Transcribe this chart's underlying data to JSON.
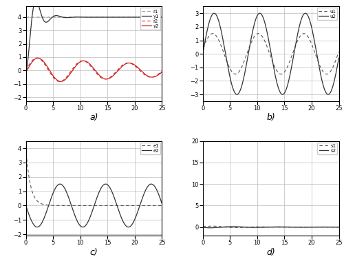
{
  "t_end": 25,
  "dt": 0.005,
  "subplot_labels": [
    "a)",
    "b)",
    "c)",
    "d)"
  ],
  "legend_a": [
    "r1",
    "y1",
    "r2",
    "y2"
  ],
  "legend_b": [
    "u1",
    "u2"
  ],
  "legend_c": [
    "e1",
    "e2"
  ],
  "legend_d": [
    "s1",
    "s2"
  ],
  "color_gray_dashed": "#999999",
  "color_dark": "#333333",
  "color_red": "#cc2222",
  "color_dark2": "#555555",
  "background": "#ffffff",
  "grid_color": "#bbbbbb",
  "ylim_a": [
    -2.3,
    4.8
  ],
  "ylim_b": [
    -3.5,
    3.5
  ],
  "ylim_c": [
    -2.1,
    4.5
  ],
  "ylim_d": [
    -2,
    20
  ],
  "yticks_a": [
    -2,
    -1,
    0,
    1,
    2,
    3,
    4
  ],
  "yticks_b": [
    -3,
    -2,
    -1,
    0,
    1,
    2,
    3
  ],
  "yticks_c": [
    -2,
    -1,
    0,
    1,
    2,
    3,
    4
  ],
  "yticks_d": [
    0,
    5,
    10,
    15,
    20
  ],
  "xticks": [
    0,
    5,
    10,
    15,
    20,
    25
  ]
}
